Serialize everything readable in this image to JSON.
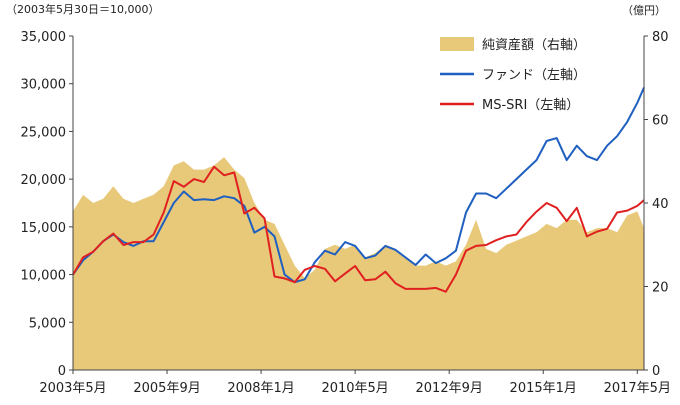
{
  "chart_data": {
    "type": "line",
    "title": "",
    "y_note": "（2003年5月30日＝10,000）",
    "y2_note": "（億円）",
    "grid": false,
    "legend_position": "top-right",
    "x_ticks": [
      "2003年5月",
      "2005年9月",
      "2008年1月",
      "2010年5月",
      "2012年9月",
      "2015年1月",
      "2017年5月"
    ],
    "x_tick_dates": [
      "2003-05",
      "2005-09",
      "2008-01",
      "2010-05",
      "2012-09",
      "2015-01",
      "2017-05"
    ],
    "xlim": [
      "2003-05",
      "2017-07"
    ],
    "ylim": [
      0,
      35000
    ],
    "y_ticks": [
      "0",
      "5,000",
      "10,000",
      "15,000",
      "20,000",
      "25,000",
      "30,000",
      "35,000"
    ],
    "y_tick_values": [
      0,
      5000,
      10000,
      15000,
      20000,
      25000,
      30000,
      35000
    ],
    "y2lim": [
      0,
      80
    ],
    "y2_ticks": [
      "0",
      "20",
      "40",
      "60",
      "80"
    ],
    "y2_tick_values": [
      0,
      20,
      40,
      60,
      80
    ],
    "colors": {
      "area": "#e8c97a",
      "fund": "#1f5fbf",
      "index": "#e02020"
    },
    "series": [
      {
        "name": "純資産額（右軸）",
        "kind": "area",
        "axis": "right",
        "x": [
          "2003-05",
          "2003-08",
          "2003-11",
          "2004-02",
          "2004-05",
          "2004-08",
          "2004-11",
          "2005-02",
          "2005-05",
          "2005-08",
          "2005-11",
          "2006-02",
          "2006-05",
          "2006-08",
          "2006-11",
          "2007-02",
          "2007-05",
          "2007-08",
          "2007-11",
          "2008-02",
          "2008-05",
          "2008-08",
          "2008-11",
          "2009-02",
          "2009-05",
          "2009-08",
          "2009-11",
          "2010-02",
          "2010-05",
          "2010-08",
          "2010-11",
          "2011-02",
          "2011-05",
          "2011-08",
          "2011-11",
          "2012-02",
          "2012-05",
          "2012-08",
          "2012-11",
          "2013-02",
          "2013-05",
          "2013-08",
          "2013-11",
          "2014-02",
          "2014-05",
          "2014-08",
          "2014-11",
          "2015-02",
          "2015-05",
          "2015-08",
          "2015-11",
          "2016-02",
          "2016-05",
          "2016-08",
          "2016-11",
          "2017-02",
          "2017-05",
          "2017-07"
        ],
        "values": [
          38,
          42,
          40,
          41,
          44,
          41,
          40,
          41,
          42,
          44,
          49,
          50,
          48,
          48,
          49,
          51,
          48,
          46,
          40,
          36,
          35,
          30,
          25,
          22,
          24,
          29,
          30,
          29,
          30,
          27,
          28,
          30,
          29,
          27,
          25,
          25,
          26,
          25,
          26,
          30,
          36,
          29,
          28,
          30,
          31,
          32,
          33,
          35,
          34,
          36,
          36,
          33,
          34,
          34,
          33,
          37,
          38,
          34
        ]
      },
      {
        "name": "ファンド（左軸）",
        "kind": "line",
        "axis": "left",
        "x": [
          "2003-05",
          "2003-08",
          "2003-11",
          "2004-02",
          "2004-05",
          "2004-08",
          "2004-11",
          "2005-02",
          "2005-05",
          "2005-08",
          "2005-11",
          "2006-02",
          "2006-05",
          "2006-08",
          "2006-11",
          "2007-02",
          "2007-05",
          "2007-08",
          "2007-11",
          "2008-02",
          "2008-05",
          "2008-08",
          "2008-11",
          "2009-02",
          "2009-05",
          "2009-08",
          "2009-11",
          "2010-02",
          "2010-05",
          "2010-08",
          "2010-11",
          "2011-02",
          "2011-05",
          "2011-08",
          "2011-11",
          "2012-02",
          "2012-05",
          "2012-08",
          "2012-11",
          "2013-02",
          "2013-05",
          "2013-08",
          "2013-11",
          "2014-02",
          "2014-05",
          "2014-08",
          "2014-11",
          "2015-02",
          "2015-05",
          "2015-08",
          "2015-11",
          "2016-02",
          "2016-05",
          "2016-08",
          "2016-11",
          "2017-02",
          "2017-05",
          "2017-07"
        ],
        "values": [
          10000,
          11500,
          12400,
          13500,
          14200,
          13400,
          13000,
          13500,
          13500,
          15500,
          17500,
          18700,
          17800,
          17900,
          17800,
          18200,
          18000,
          17200,
          14400,
          15000,
          14000,
          10000,
          9200,
          9500,
          11300,
          12500,
          12100,
          13400,
          13000,
          11700,
          12000,
          13000,
          12600,
          11800,
          11000,
          12100,
          11200,
          11700,
          12500,
          16500,
          18500,
          18500,
          18000,
          19000,
          20000,
          21000,
          22000,
          24000,
          24300,
          22000,
          23500,
          22400,
          22000,
          23500,
          24500,
          26000,
          28000,
          29600
        ]
      },
      {
        "name": "MS-SRI（左軸）",
        "kind": "line",
        "axis": "left",
        "x": [
          "2003-05",
          "2003-08",
          "2003-11",
          "2004-02",
          "2004-05",
          "2004-08",
          "2004-11",
          "2005-02",
          "2005-05",
          "2005-08",
          "2005-11",
          "2006-02",
          "2006-05",
          "2006-08",
          "2006-11",
          "2007-02",
          "2007-05",
          "2007-08",
          "2007-11",
          "2008-02",
          "2008-05",
          "2008-08",
          "2008-11",
          "2009-02",
          "2009-05",
          "2009-08",
          "2009-11",
          "2010-02",
          "2010-05",
          "2010-08",
          "2010-11",
          "2011-02",
          "2011-05",
          "2011-08",
          "2011-11",
          "2012-02",
          "2012-05",
          "2012-08",
          "2012-11",
          "2013-02",
          "2013-05",
          "2013-08",
          "2013-11",
          "2014-02",
          "2014-05",
          "2014-08",
          "2014-11",
          "2015-02",
          "2015-05",
          "2015-08",
          "2015-11",
          "2016-02",
          "2016-05",
          "2016-08",
          "2016-11",
          "2017-02",
          "2017-05",
          "2017-07"
        ],
        "values": [
          10000,
          11800,
          12400,
          13500,
          14300,
          13100,
          13400,
          13400,
          14200,
          16500,
          19800,
          19200,
          20000,
          19700,
          21300,
          20400,
          20700,
          16400,
          17000,
          15900,
          9800,
          9600,
          9200,
          10500,
          10900,
          10600,
          9300,
          10100,
          10900,
          9400,
          9500,
          10300,
          9100,
          8500,
          8500,
          8500,
          8600,
          8200,
          10000,
          12500,
          13000,
          13100,
          13600,
          14000,
          14200,
          15500,
          16600,
          17500,
          17000,
          15600,
          17000,
          14000,
          14500,
          14800,
          16500,
          16700,
          17200,
          17800
        ]
      }
    ]
  }
}
